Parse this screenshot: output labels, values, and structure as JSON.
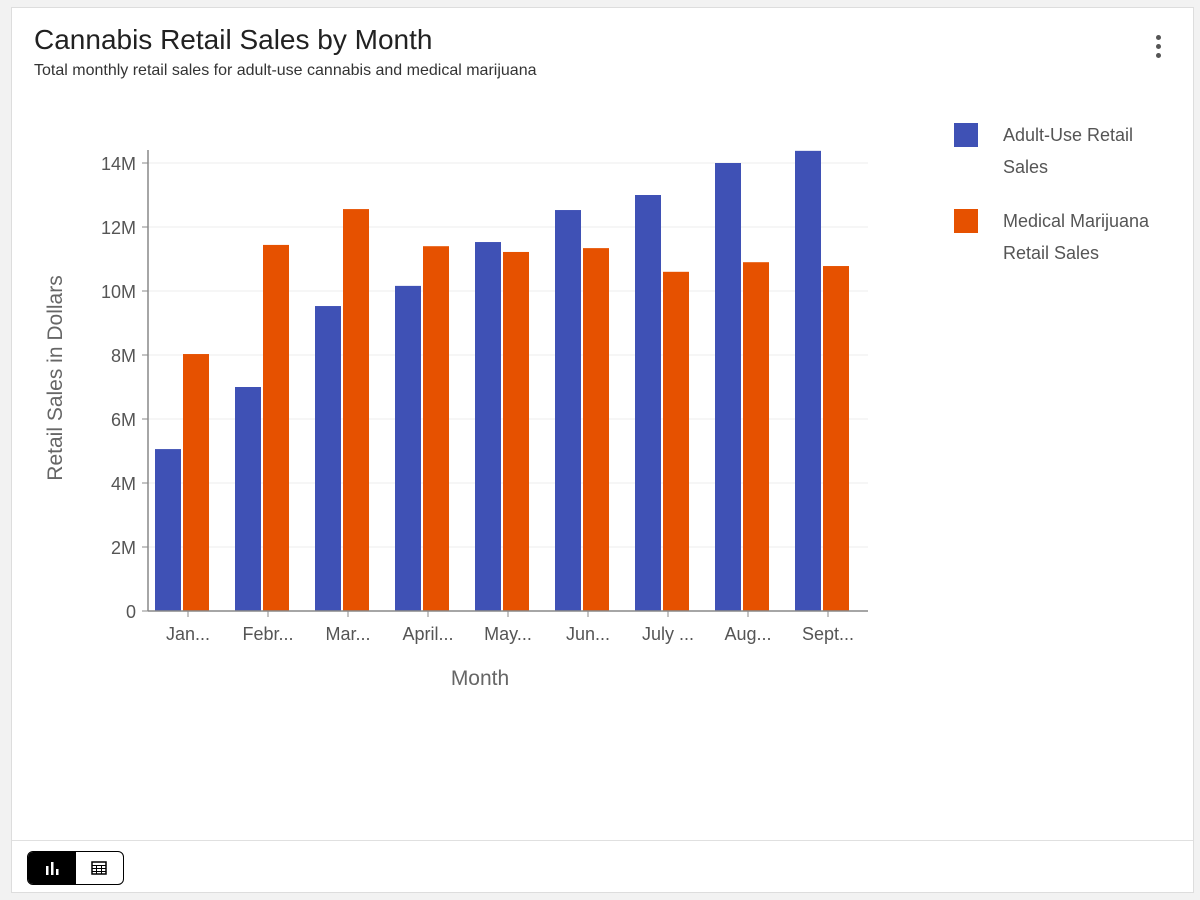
{
  "header": {
    "title": "Cannabis Retail Sales by Month",
    "subtitle": "Total monthly retail sales for adult-use cannabis and medical marijuana",
    "menu_icon": "more-vert-icon"
  },
  "footer": {
    "view_toggle": [
      {
        "icon": "bar-chart-icon",
        "active": true
      },
      {
        "icon": "table-icon",
        "active": false
      }
    ]
  },
  "chart_data": {
    "type": "bar",
    "title": "Cannabis Retail Sales by Month",
    "xlabel": "Month",
    "ylabel": "Retail Sales in Dollars",
    "ylim": [
      0,
      14000000
    ],
    "yticks": [
      0,
      2000000,
      4000000,
      6000000,
      8000000,
      10000000,
      12000000,
      14000000
    ],
    "ytick_labels": [
      "0",
      "2M",
      "4M",
      "6M",
      "8M",
      "10M",
      "12M",
      "14M"
    ],
    "grid": true,
    "legend_position": "right",
    "categories": [
      "Jan...",
      "Febr...",
      "Mar...",
      "April...",
      "May...",
      "Jun...",
      "July ...",
      "Aug...",
      "Sept..."
    ],
    "series": [
      {
        "name": "Adult-Use Retail Sales",
        "color": "#3f51b5",
        "values": [
          5060000,
          7000000,
          9530000,
          10160000,
          11530000,
          12530000,
          13000000,
          14000000,
          14380000
        ]
      },
      {
        "name": "Medical Marijuana Retail Sales",
        "color": "#e65100",
        "values": [
          8030000,
          11440000,
          12560000,
          11400000,
          11220000,
          11340000,
          10600000,
          10900000,
          10780000
        ]
      }
    ]
  }
}
